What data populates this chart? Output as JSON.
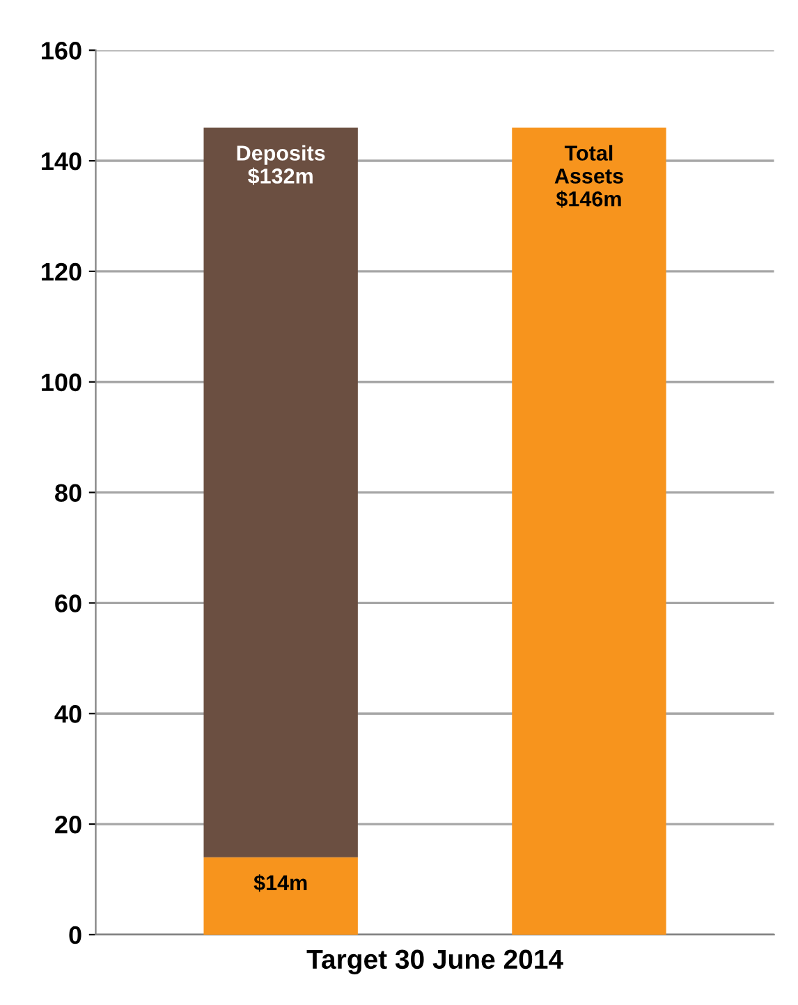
{
  "chart_data": {
    "type": "bar",
    "stacked": true,
    "xlabel": "Target 30 June 2014",
    "categories": [
      null,
      null
    ],
    "series": [
      {
        "color": "#f7941d",
        "values": [
          14,
          146
        ],
        "value_labels": [
          "$14m",
          "Total\nAssets\n$146m"
        ]
      },
      {
        "color": "#6b4f41",
        "values": [
          132,
          null
        ],
        "value_labels": [
          "Deposits\n$132m",
          null
        ]
      }
    ],
    "ylim": [
      0,
      160
    ],
    "yticks": [
      0,
      20,
      40,
      60,
      80,
      100,
      120,
      140,
      160
    ],
    "grid": "y",
    "legend": false
  }
}
